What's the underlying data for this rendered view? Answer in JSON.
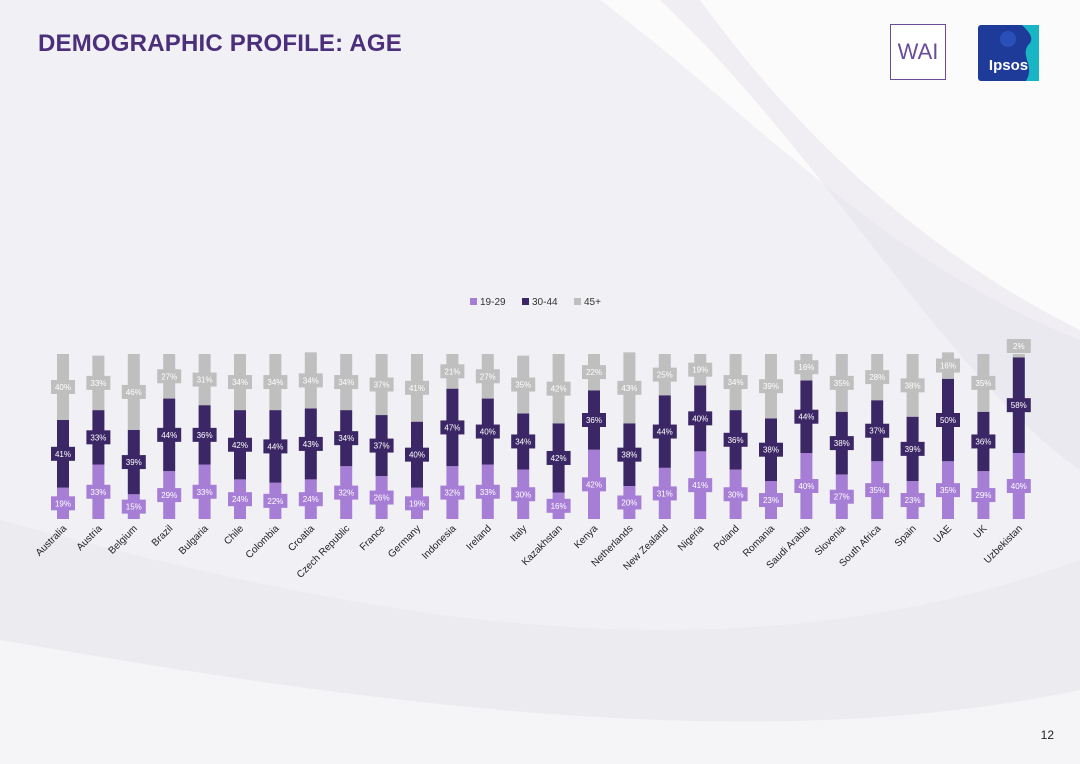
{
  "page": {
    "title": "DEMOGRAPHIC PROFILE: AGE",
    "page_number": "12",
    "logos": {
      "wai": "WAI",
      "ipsos": "Ipsos"
    }
  },
  "colors": {
    "age_19_29": "#a77ed6",
    "age_30_44": "#3c2766",
    "age_45_plus": "#bfbfbf",
    "title": "#4b2f7a",
    "ipsos_blue": "#1f3b9a",
    "ipsos_teal": "#18b5c4"
  },
  "chart_data": {
    "type": "bar",
    "stacked": true,
    "normalized_to": 100,
    "title": "",
    "xlabel": "",
    "ylabel": "",
    "ylim": [
      0,
      100
    ],
    "legend_position": "top-center",
    "categories": [
      "Australia",
      "Austria",
      "Belgium",
      "Brazil",
      "Bulgaria",
      "Chile",
      "Colombia",
      "Croatia",
      "Czech Republic",
      "France",
      "Germany",
      "Indonesia",
      "Ireland",
      "Italy",
      "Kazakhstan",
      "Kenya",
      "Netherlands",
      "New Zealand",
      "Nigeria",
      "Poland",
      "Romania",
      "Saudi Arabia",
      "Slovenia",
      "South Africa",
      "Spain",
      "UAE",
      "UK",
      "Uzbekistan"
    ],
    "series": [
      {
        "name": "19-29",
        "values": [
          19,
          33,
          15,
          29,
          33,
          24,
          22,
          24,
          32,
          26,
          19,
          32,
          33,
          30,
          16,
          42,
          20,
          31,
          41,
          30,
          23,
          40,
          27,
          35,
          23,
          35,
          29,
          40
        ]
      },
      {
        "name": "30-44",
        "values": [
          41,
          33,
          39,
          44,
          36,
          42,
          44,
          43,
          34,
          37,
          40,
          47,
          40,
          34,
          42,
          36,
          38,
          44,
          40,
          36,
          38,
          44,
          38,
          37,
          39,
          50,
          36,
          58
        ]
      },
      {
        "name": "45+",
        "values": [
          40,
          33,
          46,
          27,
          31,
          34,
          34,
          34,
          34,
          37,
          41,
          21,
          27,
          35,
          42,
          22,
          43,
          25,
          19,
          34,
          39,
          16,
          35,
          28,
          38,
          16,
          35,
          2
        ]
      }
    ]
  }
}
